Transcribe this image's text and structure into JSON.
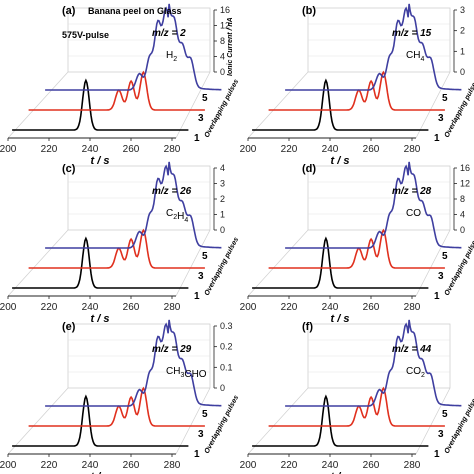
{
  "figure": {
    "xlabel": "t / s",
    "pulse_axis_label": "Overlapping pulses",
    "current_axis_label": "Ionic Current / nA"
  },
  "chart_data": [
    {
      "type": "line",
      "panel": "(a)",
      "mz": "m/z = 2",
      "species": {
        "main": "H",
        "sub": "2"
      },
      "title": "Banana peel on Glass",
      "annotation": "575V-pulse",
      "x_ticks": [
        200,
        220,
        240,
        260,
        280
      ],
      "xlim": [
        200,
        280
      ],
      "z_ticks": [
        0,
        4,
        8,
        12,
        16
      ],
      "zlim": [
        0,
        16
      ],
      "pulse_ticks": [
        "1",
        "3",
        "5"
      ],
      "series": [
        {
          "name": "1",
          "color": "#000000",
          "peaks": [
            {
              "t": 238,
              "h": 0.55
            }
          ]
        },
        {
          "name": "3",
          "color": "#e0301e",
          "peaks": [
            {
              "t": 246,
              "h": 0.22
            },
            {
              "t": 252,
              "h": 0.32
            },
            {
              "t": 258,
              "h": 0.42
            }
          ]
        },
        {
          "name": "5",
          "color": "#3f3fa0",
          "peaks": [
            {
              "t": 248,
              "h": 0.18
            },
            {
              "t": 253,
              "h": 0.35
            },
            {
              "t": 257,
              "h": 0.72
            },
            {
              "t": 261,
              "h": 0.85
            },
            {
              "t": 265,
              "h": 0.6
            },
            {
              "t": 269,
              "h": 0.4
            },
            {
              "t": 273,
              "h": 0.3
            }
          ]
        }
      ]
    },
    {
      "type": "line",
      "panel": "(b)",
      "mz": "m/z = 15",
      "species": {
        "main": "CH",
        "sub": "4"
      },
      "x_ticks": [
        200,
        220,
        240,
        260,
        280
      ],
      "xlim": [
        200,
        280
      ],
      "z_ticks": [
        0,
        1,
        2,
        3
      ],
      "zlim": [
        0,
        3
      ],
      "pulse_ticks": [
        "1",
        "3",
        "5"
      ],
      "series": [
        {
          "name": "1",
          "color": "#000000",
          "peaks": [
            {
              "t": 238,
              "h": 0.55
            }
          ]
        },
        {
          "name": "3",
          "color": "#e0301e",
          "peaks": [
            {
              "t": 246,
              "h": 0.22
            },
            {
              "t": 252,
              "h": 0.32
            },
            {
              "t": 258,
              "h": 0.42
            }
          ]
        },
        {
          "name": "5",
          "color": "#3f3fa0",
          "peaks": [
            {
              "t": 248,
              "h": 0.18
            },
            {
              "t": 253,
              "h": 0.35
            },
            {
              "t": 257,
              "h": 0.72
            },
            {
              "t": 261,
              "h": 0.85
            },
            {
              "t": 265,
              "h": 0.6
            },
            {
              "t": 269,
              "h": 0.4
            },
            {
              "t": 273,
              "h": 0.3
            }
          ]
        }
      ]
    },
    {
      "type": "line",
      "panel": "(c)",
      "mz": "m/z = 26",
      "species": {
        "main": "C",
        "sub": "2",
        "tail": "H",
        "tail_sub": "4"
      },
      "x_ticks": [
        200,
        220,
        240,
        260,
        280
      ],
      "xlim": [
        200,
        280
      ],
      "z_ticks": [
        0,
        1,
        2,
        3,
        4
      ],
      "zlim": [
        0,
        4
      ],
      "pulse_ticks": [
        "1",
        "3",
        "5"
      ],
      "series": [
        {
          "name": "1",
          "color": "#000000",
          "peaks": [
            {
              "t": 238,
              "h": 0.55
            }
          ]
        },
        {
          "name": "3",
          "color": "#e0301e",
          "peaks": [
            {
              "t": 246,
              "h": 0.22
            },
            {
              "t": 252,
              "h": 0.32
            },
            {
              "t": 258,
              "h": 0.42
            }
          ]
        },
        {
          "name": "5",
          "color": "#3f3fa0",
          "peaks": [
            {
              "t": 248,
              "h": 0.18
            },
            {
              "t": 253,
              "h": 0.35
            },
            {
              "t": 257,
              "h": 0.72
            },
            {
              "t": 261,
              "h": 0.85
            },
            {
              "t": 265,
              "h": 0.6
            },
            {
              "t": 269,
              "h": 0.4
            },
            {
              "t": 273,
              "h": 0.3
            }
          ]
        }
      ]
    },
    {
      "type": "line",
      "panel": "(d)",
      "mz": "m/z = 28",
      "species": {
        "main": "CO"
      },
      "x_ticks": [
        200,
        220,
        240,
        260,
        280
      ],
      "xlim": [
        200,
        280
      ],
      "z_ticks": [
        0,
        4,
        8,
        12,
        16
      ],
      "zlim": [
        0,
        16
      ],
      "pulse_ticks": [
        "1",
        "3",
        "5"
      ],
      "series": [
        {
          "name": "1",
          "color": "#000000",
          "peaks": [
            {
              "t": 238,
              "h": 0.55
            }
          ]
        },
        {
          "name": "3",
          "color": "#e0301e",
          "peaks": [
            {
              "t": 246,
              "h": 0.22
            },
            {
              "t": 252,
              "h": 0.32
            },
            {
              "t": 258,
              "h": 0.42
            }
          ]
        },
        {
          "name": "5",
          "color": "#3f3fa0",
          "peaks": [
            {
              "t": 248,
              "h": 0.18
            },
            {
              "t": 253,
              "h": 0.35
            },
            {
              "t": 257,
              "h": 0.72
            },
            {
              "t": 261,
              "h": 0.85
            },
            {
              "t": 265,
              "h": 0.6
            },
            {
              "t": 269,
              "h": 0.4
            },
            {
              "t": 273,
              "h": 0.3
            }
          ]
        }
      ]
    },
    {
      "type": "line",
      "panel": "(e)",
      "mz": "m/z = 29",
      "species": {
        "main": "CH",
        "sub": "3",
        "tail": "CHO"
      },
      "x_ticks": [
        200,
        220,
        240,
        260,
        280
      ],
      "xlim": [
        200,
        280
      ],
      "z_ticks": [
        0.0,
        0.1,
        0.2,
        0.3
      ],
      "zlim": [
        0,
        0.3
      ],
      "pulse_ticks": [
        "1",
        "3",
        "5"
      ],
      "series": [
        {
          "name": "1",
          "color": "#000000",
          "peaks": [
            {
              "t": 238,
              "h": 0.55
            }
          ]
        },
        {
          "name": "3",
          "color": "#e0301e",
          "peaks": [
            {
              "t": 246,
              "h": 0.22
            },
            {
              "t": 252,
              "h": 0.32
            },
            {
              "t": 258,
              "h": 0.42
            }
          ]
        },
        {
          "name": "5",
          "color": "#3f3fa0",
          "peaks": [
            {
              "t": 248,
              "h": 0.18
            },
            {
              "t": 253,
              "h": 0.35
            },
            {
              "t": 257,
              "h": 0.72
            },
            {
              "t": 261,
              "h": 0.85
            },
            {
              "t": 265,
              "h": 0.6
            },
            {
              "t": 269,
              "h": 0.4
            },
            {
              "t": 273,
              "h": 0.3
            }
          ]
        }
      ]
    },
    {
      "type": "line",
      "panel": "(f)",
      "mz": "m/z = 44",
      "species": {
        "main": "CO",
        "sub": "2"
      },
      "x_ticks": [
        200,
        220,
        240,
        260,
        280
      ],
      "xlim": [
        200,
        280
      ],
      "z_ticks": [],
      "zlim": [
        0,
        1
      ],
      "pulse_ticks": [
        "1",
        "3",
        "5"
      ],
      "series": [
        {
          "name": "1",
          "color": "#000000",
          "peaks": [
            {
              "t": 238,
              "h": 0.55
            }
          ]
        },
        {
          "name": "3",
          "color": "#e0301e",
          "peaks": [
            {
              "t": 246,
              "h": 0.22
            },
            {
              "t": 252,
              "h": 0.32
            },
            {
              "t": 258,
              "h": 0.42
            }
          ]
        },
        {
          "name": "5",
          "color": "#3f3fa0",
          "peaks": [
            {
              "t": 248,
              "h": 0.18
            },
            {
              "t": 253,
              "h": 0.35
            },
            {
              "t": 257,
              "h": 0.72
            },
            {
              "t": 261,
              "h": 0.85
            },
            {
              "t": 265,
              "h": 0.6
            },
            {
              "t": 269,
              "h": 0.4
            },
            {
              "t": 273,
              "h": 0.3
            }
          ]
        }
      ]
    }
  ]
}
